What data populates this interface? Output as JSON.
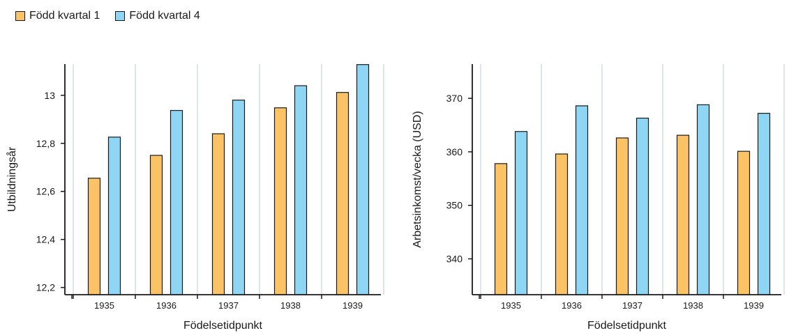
{
  "legend": [
    {
      "label": "Född kvartal 1",
      "color": "#fcc366"
    },
    {
      "label": "Född kvartal 4",
      "color": "#8fd6f4"
    }
  ],
  "chart_data": [
    {
      "type": "bar",
      "categories": [
        "1935",
        "1936",
        "1937",
        "1938",
        "1939"
      ],
      "series": [
        {
          "name": "Född kvartal 1",
          "values": [
            12.655,
            12.75,
            12.84,
            12.948,
            13.012
          ]
        },
        {
          "name": "Född kvartal 4",
          "values": [
            12.826,
            12.937,
            12.98,
            13.04,
            13.128
          ]
        }
      ],
      "xlabel": "Födelsetidpunkt",
      "ylabel": "Utbildningsår",
      "yticks": [
        12.2,
        12.4,
        12.6,
        12.8,
        13
      ],
      "ytick_labels": [
        "12,2",
        "12,4",
        "12,6",
        "12,8",
        "13"
      ],
      "ylim": [
        12.17,
        13.13
      ],
      "grid": "vertical",
      "legend": "top-left"
    },
    {
      "type": "bar",
      "categories": [
        "1935",
        "1936",
        "1937",
        "1938",
        "1939"
      ],
      "series": [
        {
          "name": "Född kvartal 1",
          "values": [
            357.8,
            359.6,
            362.6,
            363.1,
            360.1
          ]
        },
        {
          "name": "Född kvartal 4",
          "values": [
            363.8,
            368.6,
            366.3,
            368.8,
            367.2
          ]
        }
      ],
      "xlabel": "Födelsetidpunkt",
      "ylabel": "Arbetsinkomst/vecka (USD)",
      "yticks": [
        340,
        350,
        360,
        370
      ],
      "ytick_labels": [
        "340",
        "350",
        "360",
        "370"
      ],
      "ylim": [
        333.3,
        376.4
      ],
      "grid": "vertical",
      "legend": "top-left"
    }
  ]
}
